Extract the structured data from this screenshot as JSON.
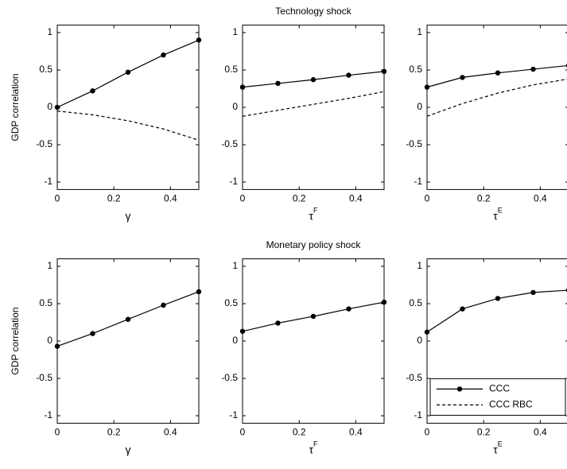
{
  "chart_data": [
    {
      "type": "line",
      "ylabel": "GDP correlation",
      "xlabel": "γ",
      "x": [
        0,
        0.125,
        0.25,
        0.375,
        0.5
      ],
      "xlim": [
        0,
        0.5
      ],
      "xticks": [
        0,
        0.2,
        0.4
      ],
      "ylim": [
        -1.1,
        1.1
      ],
      "yticks": [
        -1,
        -0.5,
        0,
        0.5,
        1
      ],
      "series": [
        {
          "name": "CCC",
          "color": "#000000",
          "line_style": "solid",
          "marker": "o",
          "values": [
            0,
            0.22,
            0.47,
            0.7,
            0.9
          ]
        },
        {
          "name": "CCC RBC",
          "color": "#000000",
          "line_style": "dashed",
          "marker": "none",
          "values": [
            -0.05,
            -0.1,
            -0.18,
            -0.29,
            -0.44
          ]
        }
      ]
    },
    {
      "type": "line",
      "title": "Technology shock",
      "xlabel": "τ",
      "xlabel_superscript": "F",
      "x": [
        0,
        0.125,
        0.25,
        0.375,
        0.5
      ],
      "xlim": [
        0,
        0.5
      ],
      "xticks": [
        0,
        0.2,
        0.4
      ],
      "ylim": [
        -1.1,
        1.1
      ],
      "yticks": [
        -1,
        -0.5,
        0,
        0.5,
        1
      ],
      "series": [
        {
          "name": "CCC",
          "color": "#000000",
          "line_style": "solid",
          "marker": "o",
          "values": [
            0.27,
            0.32,
            0.37,
            0.43,
            0.48
          ]
        },
        {
          "name": "CCC RBC",
          "color": "#000000",
          "line_style": "dashed",
          "marker": "none",
          "values": [
            -0.12,
            -0.04,
            0.04,
            0.12,
            0.21
          ]
        }
      ]
    },
    {
      "type": "line",
      "xlabel": "τ",
      "xlabel_superscript": "E",
      "x": [
        0,
        0.125,
        0.25,
        0.375,
        0.5
      ],
      "xlim": [
        0,
        0.5
      ],
      "xticks": [
        0,
        0.2,
        0.4
      ],
      "ylim": [
        -1.1,
        1.1
      ],
      "yticks": [
        -1,
        -0.5,
        0,
        0.5,
        1
      ],
      "series": [
        {
          "name": "CCC",
          "color": "#000000",
          "line_style": "solid",
          "marker": "o",
          "values": [
            0.27,
            0.4,
            0.46,
            0.51,
            0.56
          ]
        },
        {
          "name": "CCC RBC",
          "color": "#000000",
          "line_style": "dashed",
          "marker": "none",
          "values": [
            -0.12,
            0.05,
            0.19,
            0.3,
            0.38
          ]
        }
      ]
    },
    {
      "type": "line",
      "ylabel": "GDP correlation",
      "xlabel": "γ",
      "x": [
        0,
        0.125,
        0.25,
        0.375,
        0.5
      ],
      "xlim": [
        0,
        0.5
      ],
      "xticks": [
        0,
        0.2,
        0.4
      ],
      "ylim": [
        -1.1,
        1.1
      ],
      "yticks": [
        -1,
        -0.5,
        0,
        0.5,
        1
      ],
      "series": [
        {
          "name": "CCC",
          "color": "#000000",
          "line_style": "solid",
          "marker": "o",
          "values": [
            -0.07,
            0.1,
            0.29,
            0.48,
            0.66
          ]
        }
      ]
    },
    {
      "type": "line",
      "title": "Monetary policy shock",
      "xlabel": "τ",
      "xlabel_superscript": "F",
      "x": [
        0,
        0.125,
        0.25,
        0.375,
        0.5
      ],
      "xlim": [
        0,
        0.5
      ],
      "xticks": [
        0,
        0.2,
        0.4
      ],
      "ylim": [
        -1.1,
        1.1
      ],
      "yticks": [
        -1,
        -0.5,
        0,
        0.5,
        1
      ],
      "series": [
        {
          "name": "CCC",
          "color": "#000000",
          "line_style": "solid",
          "marker": "o",
          "values": [
            0.13,
            0.24,
            0.33,
            0.43,
            0.52
          ]
        }
      ]
    },
    {
      "type": "line",
      "xlabel": "τ",
      "xlabel_superscript": "E",
      "x": [
        0,
        0.125,
        0.25,
        0.375,
        0.5
      ],
      "xlim": [
        0,
        0.5
      ],
      "xticks": [
        0,
        0.2,
        0.4
      ],
      "ylim": [
        -1.1,
        1.1
      ],
      "yticks": [
        -1,
        -0.5,
        0,
        0.5,
        1
      ],
      "series": [
        {
          "name": "CCC",
          "color": "#000000",
          "line_style": "solid",
          "marker": "o",
          "values": [
            0.12,
            0.43,
            0.57,
            0.65,
            0.68
          ]
        }
      ],
      "legend": {
        "position": "lower right",
        "entries": [
          {
            "name": "CCC",
            "color": "#000000",
            "line_style": "solid",
            "marker": "o"
          },
          {
            "name": "CCC RBC",
            "color": "#000000",
            "line_style": "dashed",
            "marker": "none"
          }
        ]
      }
    }
  ]
}
